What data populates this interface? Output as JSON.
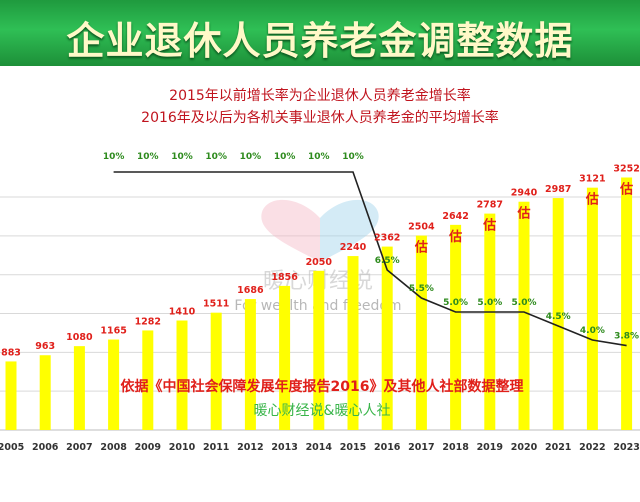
{
  "page": {
    "header_title": "企业退休人员养老金调整数据",
    "subtitle_line1": "2015年以前增长率为企业退休人员养老金增长率",
    "subtitle_line2": "2016年及以后为各机关事业退休人员养老金的平均增长率",
    "source_note": "依据《中国社会保障发展年度报告2016》及其他人社部数据整理",
    "credit": "暖心财经说&暖心人社",
    "watermark_cn": "暖心财经说",
    "watermark_en": "For wealth and freedom"
  },
  "colors": {
    "header_green": "#2fbf55",
    "bar_yellow": "#ffff00",
    "value_red": "#e0201b",
    "rate_green": "#2e8b1e",
    "line_black": "#222222",
    "subtitle_red": "#c0141e",
    "credit_green": "#39b54a"
  },
  "chart_data": {
    "type": "bar",
    "categories": [
      "2005",
      "2006",
      "2007",
      "2008",
      "2009",
      "2010",
      "2011",
      "2012",
      "2013",
      "2014",
      "2015",
      "2016",
      "2017",
      "2018",
      "2019",
      "2020",
      "2021",
      "2022",
      "2023"
    ],
    "values": [
      883,
      963,
      1080,
      1165,
      1282,
      1410,
      1511,
      1686,
      1856,
      2050,
      2240,
      2362,
      2504,
      2642,
      2787,
      2940,
      2987,
      3121,
      3252
    ],
    "value_labels": [
      "883",
      "963",
      "1080",
      "1165",
      "1282",
      "1410",
      "1511",
      "1686",
      "1856",
      "2050",
      "2240",
      "2362",
      "2504",
      "2642",
      "2787",
      "2940",
      "2987",
      "3121",
      "3252"
    ],
    "estimate_flags": [
      false,
      false,
      false,
      false,
      false,
      false,
      false,
      false,
      false,
      false,
      false,
      false,
      true,
      true,
      true,
      true,
      false,
      true,
      true
    ],
    "estimate_label": "估",
    "ylim": [
      0,
      3400
    ],
    "grid": true,
    "growth_rate": {
      "categories": [
        "2008",
        "2009",
        "2010",
        "2011",
        "2012",
        "2013",
        "2014",
        "2015",
        "2016",
        "2017",
        "2018",
        "2019",
        "2020",
        "2021",
        "2022",
        "2023"
      ],
      "values": [
        10,
        10,
        10,
        10,
        10,
        10,
        10,
        10,
        6.5,
        5.5,
        5.0,
        5.0,
        5.0,
        4.5,
        4.0,
        3.8
      ],
      "labels": [
        "10%",
        "10%",
        "10%",
        "10%",
        "10%",
        "10%",
        "10%",
        "10%",
        "6.5%",
        "5.5%",
        "5.0%",
        "5.0%",
        "5.0%",
        "4.5%",
        "4.0%",
        "3.8%"
      ]
    }
  }
}
